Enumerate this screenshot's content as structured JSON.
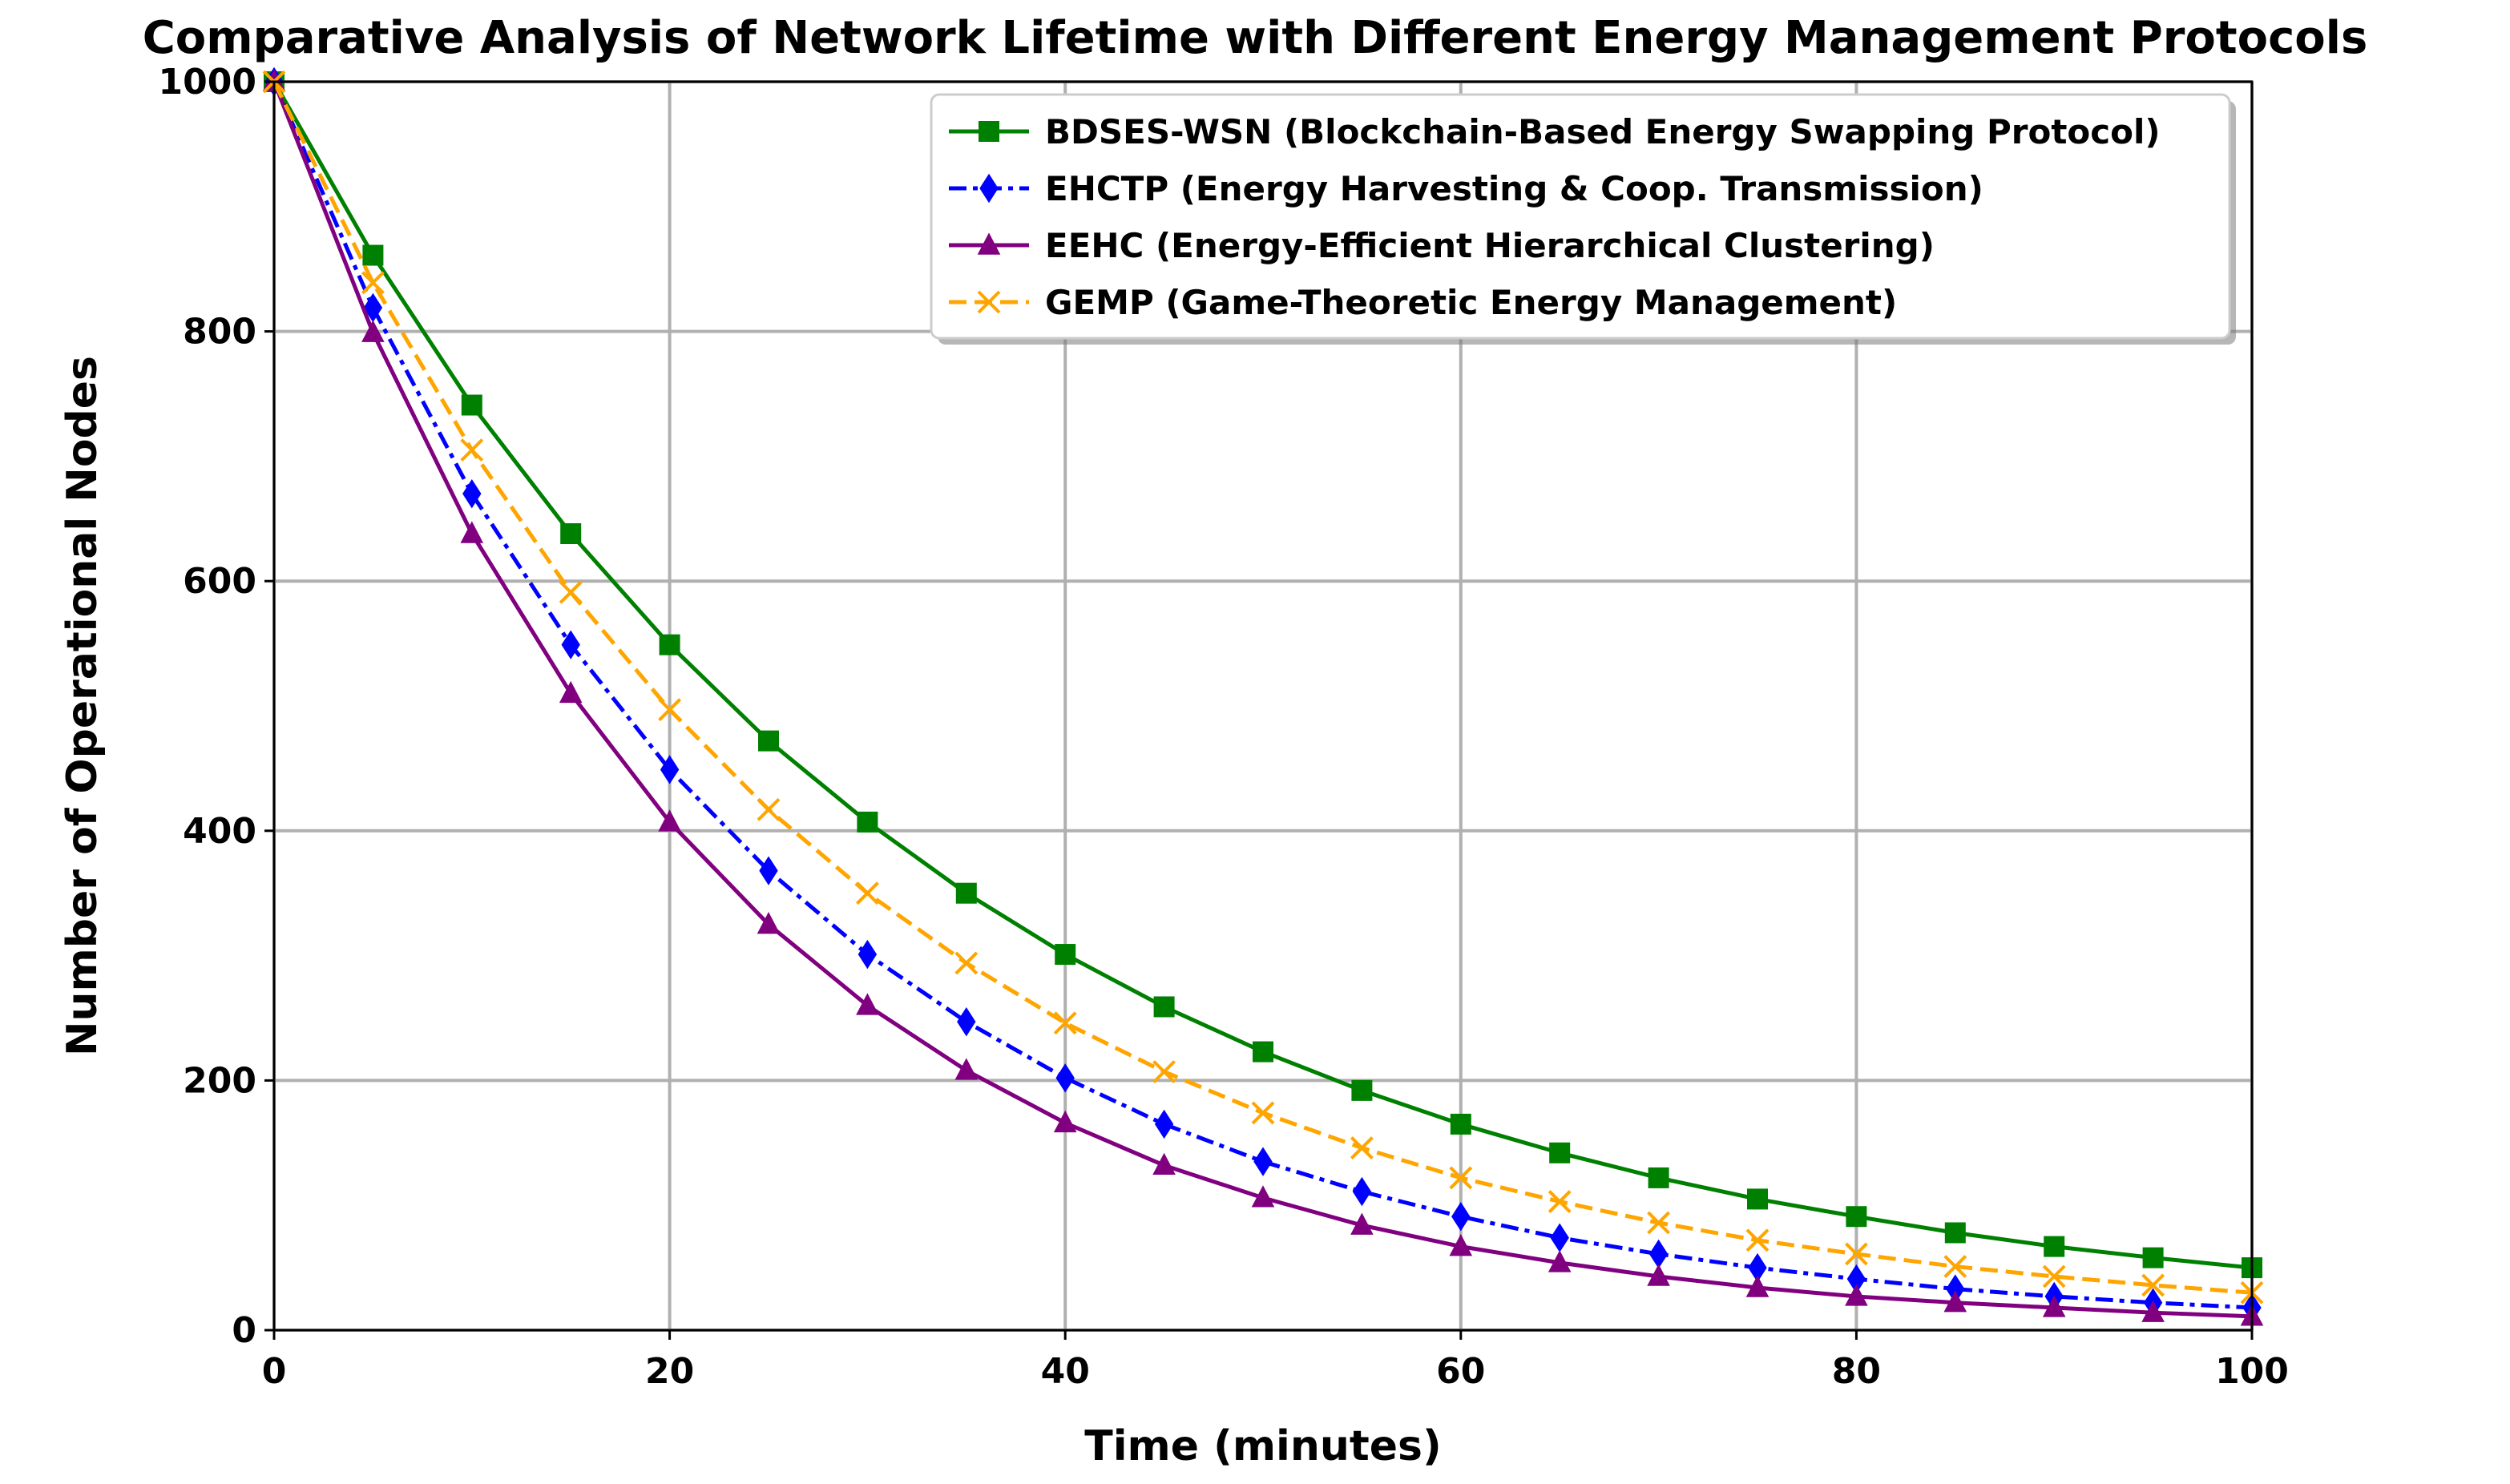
{
  "chart_data": {
    "type": "line",
    "title": "Comparative Analysis of Network Lifetime with Different Energy Management Protocols",
    "xlabel": "Time (minutes)",
    "ylabel": "Number of Operational Nodes",
    "xlim": [
      0,
      100
    ],
    "ylim": [
      0,
      1000
    ],
    "xticks": [
      0,
      20,
      40,
      60,
      80,
      100
    ],
    "yticks": [
      0,
      200,
      400,
      600,
      800,
      1000
    ],
    "grid": true,
    "legend_position": "top-right",
    "x": [
      0,
      5,
      10,
      15,
      20,
      25,
      30,
      35,
      40,
      45,
      50,
      55,
      60,
      65,
      70,
      75,
      80,
      85,
      90,
      95,
      100
    ],
    "series": [
      {
        "name": "BDSES-WSN (Blockchain-Based Energy Swapping Protocol)",
        "color": "#008000",
        "line_style": "solid",
        "marker": "square",
        "values": [
          1000,
          861,
          741,
          638,
          549,
          472,
          407,
          350,
          301,
          259,
          223,
          192,
          165,
          142,
          122,
          105,
          91,
          78,
          67,
          58,
          50
        ]
      },
      {
        "name": "EHCTP (Energy Harvesting & Coop. Transmission)",
        "color": "#0000ff",
        "line_style": "dashdot",
        "marker": "diamond",
        "values": [
          1000,
          819,
          670,
          549,
          449,
          368,
          301,
          247,
          202,
          165,
          135,
          111,
          91,
          74,
          61,
          50,
          41,
          33,
          27,
          22,
          18
        ]
      },
      {
        "name": "EEHC (Energy-Efficient Hierarchical Clustering)",
        "color": "#800080",
        "line_style": "solid",
        "marker": "triangle",
        "values": [
          1000,
          799,
          638,
          510,
          407,
          325,
          260,
          208,
          166,
          132,
          106,
          84,
          67,
          54,
          43,
          34,
          27,
          22,
          18,
          14,
          11
        ]
      },
      {
        "name": "GEMP (Game-Theoretic Energy Management)",
        "color": "#ffa500",
        "line_style": "dashed",
        "marker": "x",
        "values": [
          1000,
          839,
          705,
          591,
          497,
          417,
          350,
          294,
          246,
          207,
          174,
          146,
          122,
          103,
          86,
          72,
          61,
          51,
          43,
          36,
          30
        ]
      }
    ]
  }
}
